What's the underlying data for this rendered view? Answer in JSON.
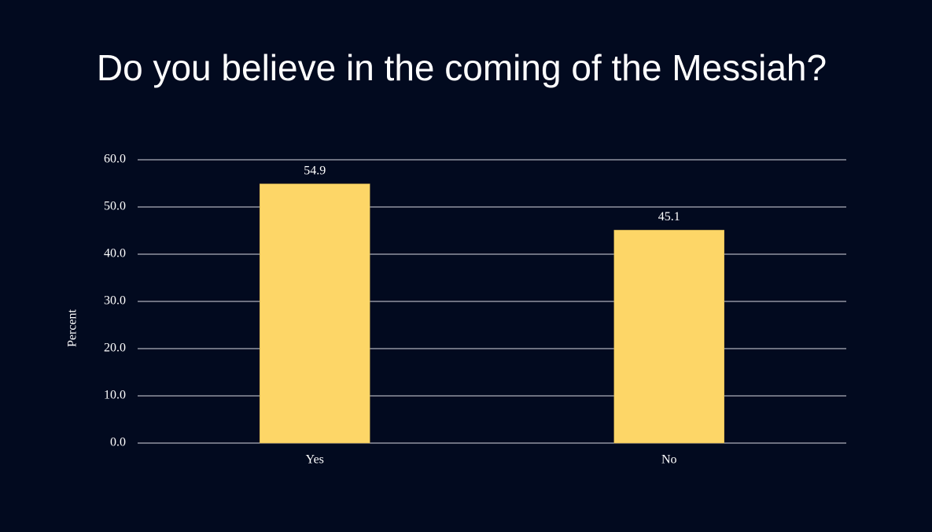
{
  "chart_data": {
    "type": "bar",
    "title": "Do you believe in the coming of the Messiah?",
    "y_label": "Percent",
    "categories": [
      "Yes",
      "No"
    ],
    "values": [
      54.9,
      45.1
    ],
    "color": "#fdd667",
    "ylim": [
      0,
      60
    ],
    "yticks": [
      {
        "value": 0,
        "label": "0.0"
      },
      {
        "value": 10,
        "label": "10.0"
      },
      {
        "value": 20,
        "label": "20.0"
      },
      {
        "value": 30,
        "label": "30.0"
      },
      {
        "value": 40,
        "label": "40.0"
      },
      {
        "value": 50,
        "label": "50.0"
      },
      {
        "value": 60,
        "label": "60.0"
      }
    ],
    "grid": true
  }
}
